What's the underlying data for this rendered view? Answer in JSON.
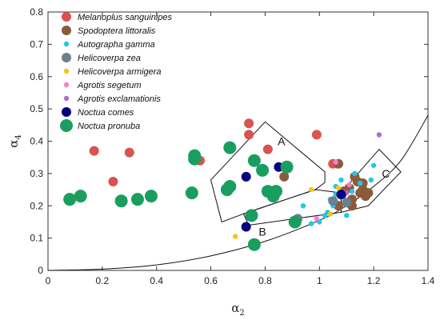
{
  "chart_data": {
    "type": "scatter",
    "xlabel": {
      "main": "α",
      "sub": "2"
    },
    "ylabel": {
      "main": "α",
      "sub": "4"
    },
    "xlim": [
      0,
      1.4
    ],
    "ylim": [
      0,
      0.8
    ],
    "x_ticks": [
      "0",
      "0.2",
      "0.4",
      "0.6",
      "0.8",
      "1",
      "1.2",
      "1.4"
    ],
    "y_ticks": [
      "0",
      "0.1",
      "0.2",
      "0.3",
      "0.4",
      "0.5",
      "0.6",
      "0.7",
      "0.8"
    ],
    "grid": false,
    "legend_position": "top-left",
    "region_labels": [
      "A",
      "B",
      "C"
    ],
    "region_label_positions": [
      [
        0.86,
        0.4
      ],
      [
        0.79,
        0.12
      ],
      [
        1.245,
        0.3
      ]
    ],
    "regions": {
      "A": [
        [
          0.6,
          0.28
        ],
        [
          0.8,
          0.46
        ],
        [
          1.02,
          0.305
        ],
        [
          1.02,
          0.272
        ],
        [
          0.985,
          0.25
        ],
        [
          0.86,
          0.215
        ],
        [
          0.72,
          0.175
        ],
        [
          0.64,
          0.15
        ]
      ],
      "B": [
        [
          0.72,
          0.175
        ],
        [
          0.74,
          0.14
        ],
        [
          1.08,
          0.18
        ],
        [
          1.08,
          0.24
        ],
        [
          0.985,
          0.25
        ],
        [
          0.86,
          0.215
        ]
      ],
      "C": [
        [
          1.08,
          0.18
        ],
        [
          1.08,
          0.24
        ],
        [
          1.22,
          0.375
        ],
        [
          1.3,
          0.305
        ],
        [
          1.18,
          0.2
        ]
      ]
    },
    "boundary_curve": [
      [
        0,
        0
      ],
      [
        0.2,
        0.004
      ],
      [
        0.4,
        0.017
      ],
      [
        0.6,
        0.045
      ],
      [
        0.8,
        0.09
      ],
      [
        1.0,
        0.155
      ],
      [
        1.1,
        0.2
      ],
      [
        1.2,
        0.26
      ],
      [
        1.3,
        0.34
      ],
      [
        1.4,
        0.48
      ]
    ],
    "series": [
      {
        "name": "Melanoplus sanguinipes",
        "color": "#d9534f",
        "size": "large",
        "points": [
          [
            0.17,
            0.37
          ],
          [
            0.3,
            0.365
          ],
          [
            0.24,
            0.275
          ],
          [
            0.56,
            0.34
          ],
          [
            0.74,
            0.455
          ],
          [
            0.74,
            0.42
          ],
          [
            0.81,
            0.375
          ],
          [
            0.99,
            0.42
          ],
          [
            1.05,
            0.33
          ]
        ]
      },
      {
        "name": "Spodoptera littoralis",
        "color": "#8b5a3c",
        "size": "large",
        "points": [
          [
            0.87,
            0.29
          ],
          [
            1.07,
            0.2
          ],
          [
            1.09,
            0.245
          ],
          [
            1.12,
            0.2
          ],
          [
            1.14,
            0.275
          ],
          [
            1.16,
            0.25
          ],
          [
            1.17,
            0.23
          ],
          [
            1.13,
            0.29
          ],
          [
            1.11,
            0.255
          ],
          [
            1.15,
            0.24
          ],
          [
            1.12,
            0.22
          ],
          [
            1.16,
            0.27
          ],
          [
            1.18,
            0.24
          ],
          [
            1.07,
            0.33
          ]
        ]
      },
      {
        "name": "Autographa gamma",
        "color": "#1ec8e8",
        "size": "small",
        "points": [
          [
            0.94,
            0.2
          ],
          [
            0.97,
            0.145
          ],
          [
            1.0,
            0.15
          ],
          [
            1.02,
            0.17
          ],
          [
            1.04,
            0.22
          ],
          [
            1.05,
            0.2
          ],
          [
            1.06,
            0.26
          ],
          [
            1.08,
            0.28
          ],
          [
            1.09,
            0.23
          ],
          [
            1.1,
            0.17
          ],
          [
            1.13,
            0.3
          ],
          [
            1.15,
            0.27
          ],
          [
            1.2,
            0.325
          ],
          [
            1.19,
            0.28
          ],
          [
            1.12,
            0.245
          ],
          [
            1.06,
            0.235
          ],
          [
            1.03,
            0.18
          ]
        ]
      },
      {
        "name": "Helicoverpa zea",
        "color": "#6e7f8c",
        "size": "large",
        "points": [
          [
            0.92,
            0.16
          ],
          [
            1.05,
            0.215
          ],
          [
            1.1,
            0.21
          ]
        ]
      },
      {
        "name": "Helicoverpa armigera",
        "color": "#f5c518",
        "size": "small",
        "points": [
          [
            0.69,
            0.105
          ],
          [
            0.97,
            0.25
          ],
          [
            1.04,
            0.175
          ],
          [
            1.07,
            0.255
          ]
        ]
      },
      {
        "name": "Agrotis segetum",
        "color": "#ee82c8",
        "size": "small",
        "points": [
          [
            1.06,
            0.335
          ],
          [
            0.99,
            0.16
          ],
          [
            1.09,
            0.24
          ],
          [
            1.11,
            0.265
          ]
        ]
      },
      {
        "name": "Agrotis exclamationis",
        "color": "#b06bd6",
        "size": "small",
        "points": [
          [
            0.73,
            0.13
          ],
          [
            1.22,
            0.42
          ],
          [
            1.1,
            0.24
          ]
        ]
      },
      {
        "name": "Noctua comes",
        "color": "#000080",
        "size": "large",
        "points": [
          [
            0.73,
            0.29
          ],
          [
            0.85,
            0.32
          ],
          [
            1.08,
            0.235
          ],
          [
            0.73,
            0.135
          ]
        ]
      },
      {
        "name": "Noctua pronuba",
        "color": "#1a9e5f",
        "size": "xlarge",
        "points": [
          [
            0.08,
            0.22
          ],
          [
            0.12,
            0.23
          ],
          [
            0.27,
            0.215
          ],
          [
            0.33,
            0.22
          ],
          [
            0.38,
            0.23
          ],
          [
            0.54,
            0.355
          ],
          [
            0.54,
            0.345
          ],
          [
            0.53,
            0.24
          ],
          [
            0.67,
            0.38
          ],
          [
            0.67,
            0.26
          ],
          [
            0.66,
            0.25
          ],
          [
            0.76,
            0.34
          ],
          [
            0.79,
            0.31
          ],
          [
            0.81,
            0.245
          ],
          [
            0.84,
            0.245
          ],
          [
            0.75,
            0.17
          ],
          [
            0.76,
            0.08
          ],
          [
            0.83,
            0.23
          ],
          [
            0.88,
            0.32
          ],
          [
            0.91,
            0.15
          ]
        ]
      }
    ]
  }
}
